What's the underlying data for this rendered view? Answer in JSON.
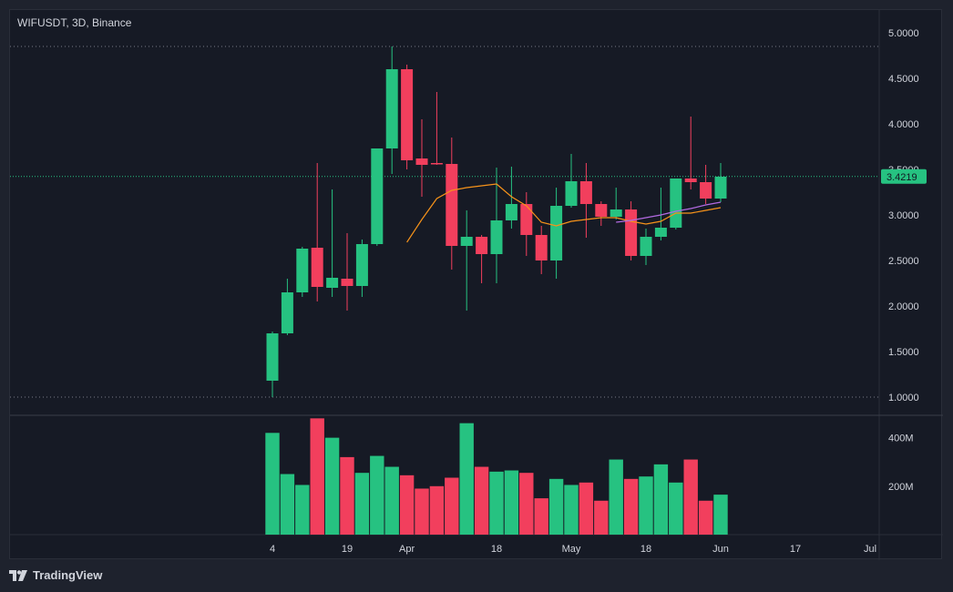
{
  "header": {
    "legend": "WIFUSDT, 3D, Binance"
  },
  "last_price_label": "3.4219",
  "footer": {
    "brand": "TradingView"
  },
  "colors": {
    "up": "#26c281",
    "down": "#f23f5d",
    "ma_orange": "#f7931a",
    "ma_purple": "#b36ae2",
    "grid_dotted": "#787b86",
    "price_line": "#26c281"
  },
  "chart_data": {
    "type": "candlestick",
    "interval": "3D",
    "symbol": "WIFUSDT",
    "exchange": "Binance",
    "ylim": [
      0.8,
      5.25
    ],
    "yticks": [
      "5.0000",
      "4.5000",
      "4.0000",
      "3.5000",
      "3.0000",
      "2.5000",
      "2.0000",
      "1.5000",
      "1.0000"
    ],
    "ytick_values": [
      5.0,
      4.5,
      4.0,
      3.5,
      3.0,
      2.5,
      2.0,
      1.5,
      1.0
    ],
    "horizontal_lines": [
      4.85,
      1.0
    ],
    "last_price": 3.4219,
    "xticks": [
      {
        "label": "4",
        "index": 0
      },
      {
        "label": "19",
        "index": 5
      },
      {
        "label": "Apr",
        "index": 9
      },
      {
        "label": "18",
        "index": 15
      },
      {
        "label": "May",
        "index": 20
      },
      {
        "label": "18",
        "index": 25
      },
      {
        "label": "Jun",
        "index": 30
      },
      {
        "label": "17",
        "index": 35
      },
      {
        "label": "Jul",
        "index": 40
      }
    ],
    "candles": [
      {
        "o": 1.18,
        "h": 1.72,
        "l": 1.0,
        "c": 1.7
      },
      {
        "o": 1.7,
        "h": 2.3,
        "l": 1.68,
        "c": 2.15
      },
      {
        "o": 2.15,
        "h": 2.65,
        "l": 2.1,
        "c": 2.63
      },
      {
        "o": 2.64,
        "h": 3.57,
        "l": 2.05,
        "c": 2.21
      },
      {
        "o": 2.2,
        "h": 3.28,
        "l": 2.1,
        "c": 2.31
      },
      {
        "o": 2.3,
        "h": 2.8,
        "l": 1.95,
        "c": 2.22
      },
      {
        "o": 2.22,
        "h": 2.73,
        "l": 2.1,
        "c": 2.68
      },
      {
        "o": 2.68,
        "h": 3.72,
        "l": 2.66,
        "c": 3.73
      },
      {
        "o": 3.73,
        "h": 4.85,
        "l": 3.45,
        "c": 4.6
      },
      {
        "o": 4.6,
        "h": 4.65,
        "l": 3.5,
        "c": 3.6
      },
      {
        "o": 3.62,
        "h": 4.05,
        "l": 3.2,
        "c": 3.55
      },
      {
        "o": 3.57,
        "h": 4.35,
        "l": 3.55,
        "c": 3.56
      },
      {
        "o": 3.56,
        "h": 3.85,
        "l": 2.4,
        "c": 2.66
      },
      {
        "o": 2.66,
        "h": 3.05,
        "l": 1.95,
        "c": 2.76
      },
      {
        "o": 2.76,
        "h": 2.78,
        "l": 2.25,
        "c": 2.57
      },
      {
        "o": 2.57,
        "h": 3.52,
        "l": 2.25,
        "c": 2.94
      },
      {
        "o": 2.94,
        "h": 3.53,
        "l": 2.85,
        "c": 3.12
      },
      {
        "o": 3.12,
        "h": 3.25,
        "l": 2.55,
        "c": 2.78
      },
      {
        "o": 2.78,
        "h": 2.88,
        "l": 2.35,
        "c": 2.5
      },
      {
        "o": 2.5,
        "h": 3.3,
        "l": 2.3,
        "c": 3.1
      },
      {
        "o": 3.1,
        "h": 3.67,
        "l": 3.08,
        "c": 3.37
      },
      {
        "o": 3.37,
        "h": 3.57,
        "l": 2.75,
        "c": 3.12
      },
      {
        "o": 3.12,
        "h": 3.15,
        "l": 2.88,
        "c": 2.98
      },
      {
        "o": 2.98,
        "h": 3.3,
        "l": 2.95,
        "c": 3.06
      },
      {
        "o": 3.06,
        "h": 3.15,
        "l": 2.5,
        "c": 2.55
      },
      {
        "o": 2.55,
        "h": 2.85,
        "l": 2.45,
        "c": 2.76
      },
      {
        "o": 2.76,
        "h": 3.3,
        "l": 2.72,
        "c": 2.86
      },
      {
        "o": 2.86,
        "h": 3.4,
        "l": 2.84,
        "c": 3.4
      },
      {
        "o": 3.4,
        "h": 4.08,
        "l": 3.28,
        "c": 3.36
      },
      {
        "o": 3.36,
        "h": 3.55,
        "l": 3.12,
        "c": 3.18
      },
      {
        "o": 3.18,
        "h": 3.57,
        "l": 3.14,
        "c": 3.42
      }
    ],
    "ma_orange": [
      null,
      null,
      null,
      null,
      null,
      null,
      null,
      null,
      null,
      2.7,
      2.95,
      3.18,
      3.27,
      3.3,
      3.32,
      3.34,
      3.2,
      3.1,
      2.92,
      2.88,
      2.93,
      2.95,
      2.97,
      2.97,
      2.93,
      2.9,
      2.93,
      3.02,
      3.02,
      3.05,
      3.08
    ],
    "ma_purple": [
      null,
      null,
      null,
      null,
      null,
      null,
      null,
      null,
      null,
      null,
      null,
      null,
      null,
      null,
      null,
      null,
      null,
      null,
      null,
      null,
      null,
      null,
      null,
      2.92,
      2.94,
      2.97,
      3.0,
      3.04,
      3.07,
      3.11,
      3.14
    ],
    "volume_ticks": [
      "400M",
      "200M"
    ],
    "volume_tick_values": [
      400,
      200
    ],
    "volume_ylim": [
      0,
      470
    ],
    "volumes": [
      420,
      250,
      205,
      480,
      400,
      320,
      255,
      325,
      280,
      245,
      190,
      200,
      235,
      460,
      280,
      260,
      265,
      255,
      150,
      230,
      205,
      215,
      140,
      310,
      230,
      240,
      290,
      215,
      310,
      140,
      165
    ]
  }
}
